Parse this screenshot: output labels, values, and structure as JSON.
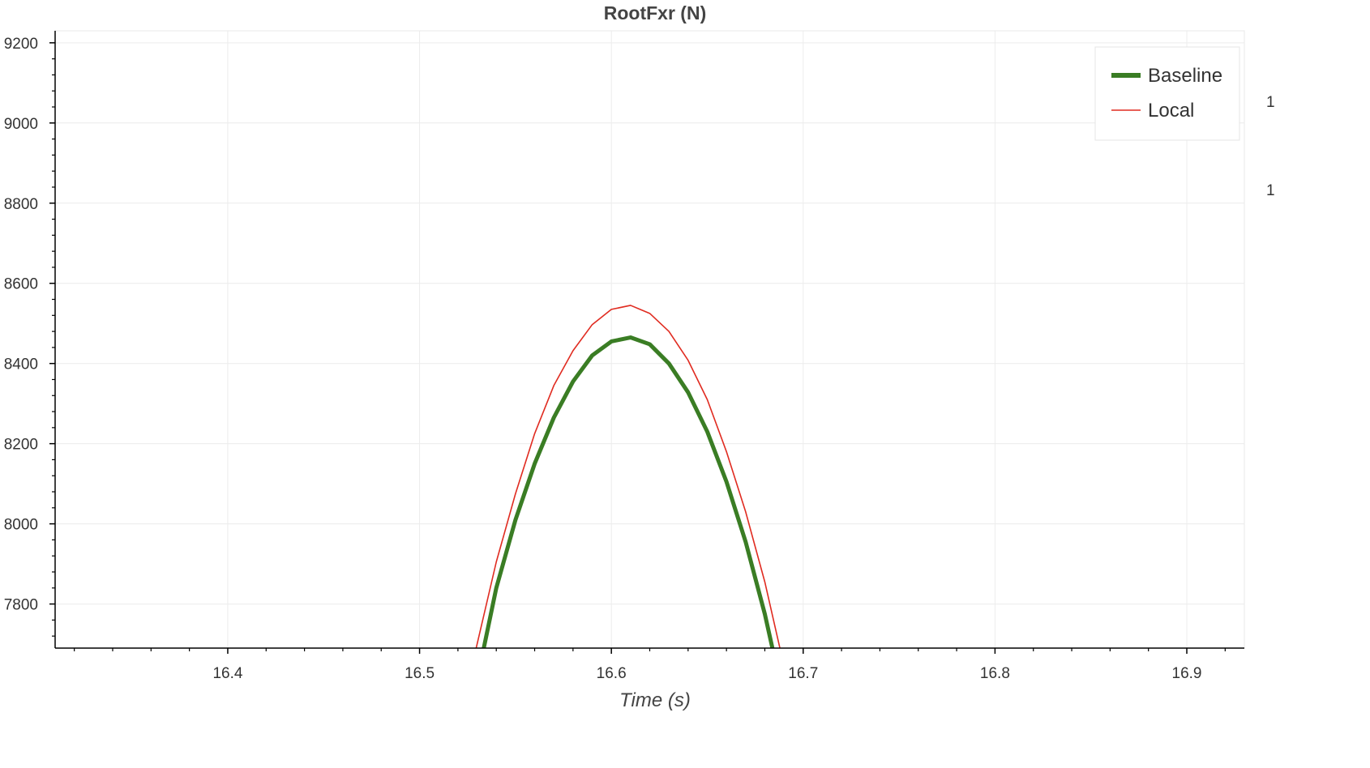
{
  "chart_data": {
    "type": "line",
    "title": "RootFxr (N)",
    "xlabel": "Time (s)",
    "ylabel": "",
    "xlim": [
      16.31,
      16.93
    ],
    "ylim": [
      7690,
      9230
    ],
    "x_ticks": [
      16.4,
      16.5,
      16.6,
      16.7,
      16.8,
      16.9
    ],
    "x_tick_labels": [
      "16.4",
      "16.5",
      "16.6",
      "16.7",
      "16.8",
      "16.9"
    ],
    "y_ticks": [
      7800,
      8000,
      8200,
      8400,
      8600,
      8800,
      9000,
      9200
    ],
    "y_tick_labels": [
      "7800",
      "8000",
      "8200",
      "8400",
      "8600",
      "8800",
      "9000",
      "9200"
    ],
    "grid": true,
    "legend_position": "top-right",
    "series": [
      {
        "name": "Baseline",
        "color": "#3a7d24",
        "x": [
          16.53,
          16.54,
          16.55,
          16.56,
          16.57,
          16.58,
          16.59,
          16.6,
          16.61,
          16.62,
          16.63,
          16.64,
          16.65,
          16.66,
          16.67,
          16.68,
          16.69
        ],
        "y": [
          7610,
          7840,
          8010,
          8150,
          8265,
          8355,
          8420,
          8455,
          8465,
          8448,
          8400,
          8328,
          8230,
          8105,
          7955,
          7775,
          7560
        ]
      },
      {
        "name": "Local",
        "color": "#e02b20",
        "x": [
          16.52,
          16.53,
          16.54,
          16.55,
          16.56,
          16.57,
          16.58,
          16.59,
          16.6,
          16.61,
          16.62,
          16.63,
          16.64,
          16.65,
          16.66,
          16.67,
          16.68,
          16.69
        ],
        "y": [
          7500,
          7700,
          7905,
          8075,
          8225,
          8345,
          8432,
          8497,
          8535,
          8545,
          8525,
          8480,
          8408,
          8310,
          8180,
          8030,
          7855,
          7645
        ]
      }
    ],
    "right_edge_labels": [
      "1",
      "1"
    ]
  }
}
